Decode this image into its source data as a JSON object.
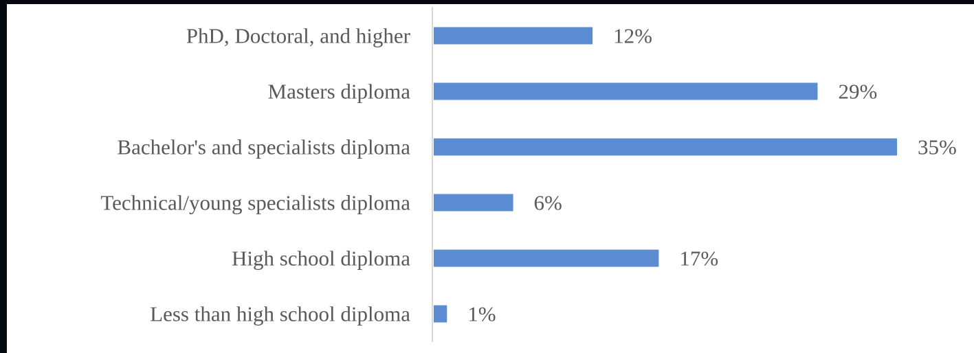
{
  "chart_data": {
    "type": "bar",
    "orientation": "horizontal",
    "categories": [
      "PhD, Doctoral, and higher",
      "Masters diploma",
      "Bachelor's and specialists diploma",
      "Technical/young specialists diploma",
      "High school diploma",
      "Less than high school diploma"
    ],
    "values": [
      12,
      29,
      35,
      6,
      17,
      1
    ],
    "value_labels": [
      "12%",
      "29%",
      "35%",
      "6%",
      "17%",
      "1%"
    ],
    "unit": "%",
    "xlim": [
      0,
      35
    ],
    "grid": false,
    "legend": "none",
    "title": "",
    "xlabel": "",
    "ylabel": "",
    "colors": {
      "bar": "#5b8bd1",
      "label_text": "#595959",
      "axis_line": "#d9d9d9",
      "frame": "#05080f",
      "panel": "#ffffff"
    }
  }
}
